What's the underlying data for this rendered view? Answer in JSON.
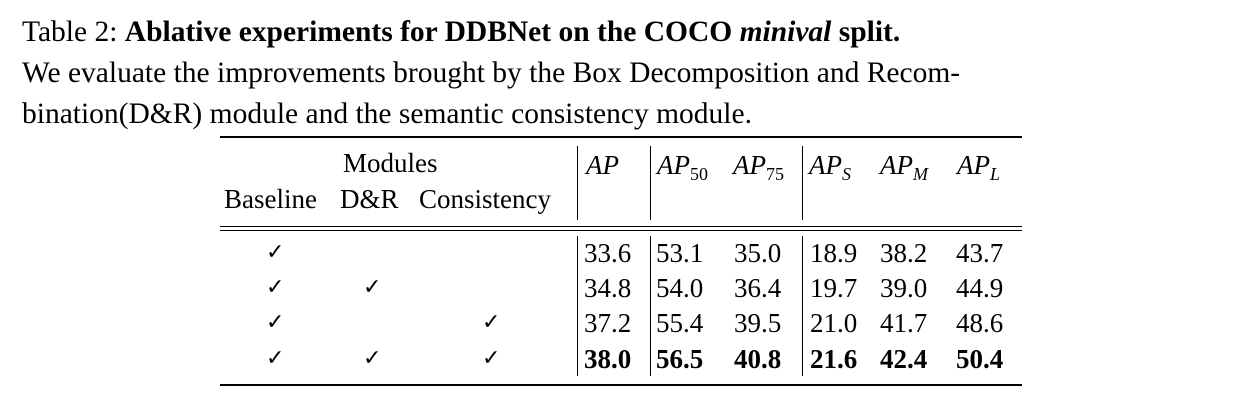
{
  "caption": {
    "label": "Table 2: ",
    "bold_1": "Ablative experiments for DDBNet on the COCO ",
    "bold_italic": "minival",
    "bold_2": " split.",
    "line2": "We evaluate the improvements brought by the Box Decomposition and Recom-",
    "line3": "bination(D&R) module and the semantic consistency module."
  },
  "table": {
    "modules_header": "Modules",
    "module_cols": [
      "Baseline",
      "D&R",
      "Consistency"
    ],
    "metric_headers": [
      {
        "base": "AP",
        "sub": ""
      },
      {
        "base": "AP",
        "sub": "50"
      },
      {
        "base": "AP",
        "sub": "75"
      },
      {
        "base": "AP",
        "sub": "S"
      },
      {
        "base": "AP",
        "sub": "M"
      },
      {
        "base": "AP",
        "sub": "L"
      }
    ],
    "check_symbol": "✓",
    "rows": [
      {
        "baseline": "✓",
        "dr": "",
        "consistency": "",
        "values": [
          "33.6",
          "53.1",
          "35.0",
          "18.9",
          "38.2",
          "43.7"
        ],
        "bold": false
      },
      {
        "baseline": "✓",
        "dr": "✓",
        "consistency": "",
        "values": [
          "34.8",
          "54.0",
          "36.4",
          "19.7",
          "39.0",
          "44.9"
        ],
        "bold": false
      },
      {
        "baseline": "✓",
        "dr": "",
        "consistency": "✓",
        "values": [
          "37.2",
          "55.4",
          "39.5",
          "21.0",
          "41.7",
          "48.6"
        ],
        "bold": false
      },
      {
        "baseline": "✓",
        "dr": "✓",
        "consistency": "✓",
        "values": [
          "38.0",
          "56.5",
          "40.8",
          "21.6",
          "42.4",
          "50.4"
        ],
        "bold": true
      }
    ]
  }
}
